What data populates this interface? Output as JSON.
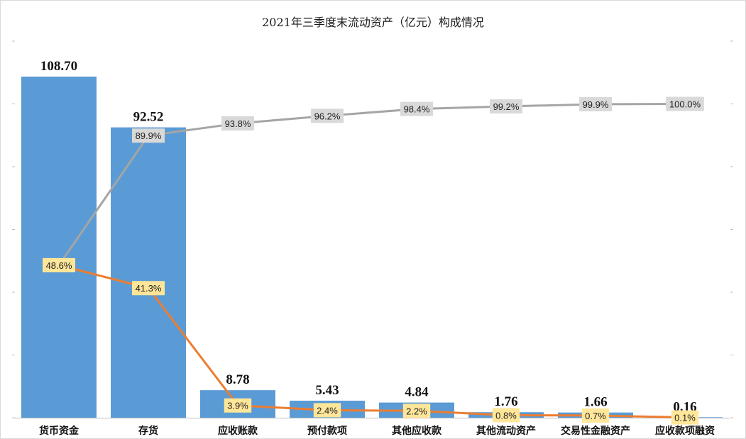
{
  "chart_data": {
    "type": "bar",
    "title": "2021年三季度末流动资产（亿元）构成情况",
    "xlabel": "",
    "ylabel": "",
    "categories": [
      "货币资金",
      "存货",
      "应收账款",
      "预付款项",
      "其他应收款",
      "其他流动资产",
      "交易性金融资产",
      "应收款项融资"
    ],
    "ylim": [
      0,
      120
    ],
    "ylim_pct": [
      0,
      1.2
    ],
    "grid": false,
    "legend": "none",
    "series": [
      {
        "type": "bar",
        "values": [
          108.7,
          92.52,
          8.78,
          5.43,
          4.84,
          1.76,
          1.66,
          0.16
        ],
        "labels": [
          "108.70",
          "92.52",
          "8.78",
          "5.43",
          "4.84",
          "1.76",
          "1.66",
          "0.16"
        ],
        "color": "#5b9bd5"
      },
      {
        "type": "line",
        "axis": "secondary",
        "values": [
          0.486,
          0.413,
          0.039,
          0.024,
          0.022,
          0.008,
          0.007,
          0.001
        ],
        "labels": [
          "48.6%",
          "41.3%",
          "3.9%",
          "2.4%",
          "2.2%",
          "0.8%",
          "0.7%",
          "0.1%"
        ],
        "color": "#ed7d31",
        "label_bg": "#ffe699"
      },
      {
        "type": "line",
        "axis": "secondary",
        "values": [
          0.486,
          0.899,
          0.938,
          0.962,
          0.984,
          0.992,
          0.999,
          1.0
        ],
        "labels": [
          "48.6%",
          "89.9%",
          "93.8%",
          "96.2%",
          "98.4%",
          "99.2%",
          "99.9%",
          "100.0%"
        ],
        "color": "#a5a5a5",
        "label_bg": "#d9d9d9"
      }
    ]
  }
}
